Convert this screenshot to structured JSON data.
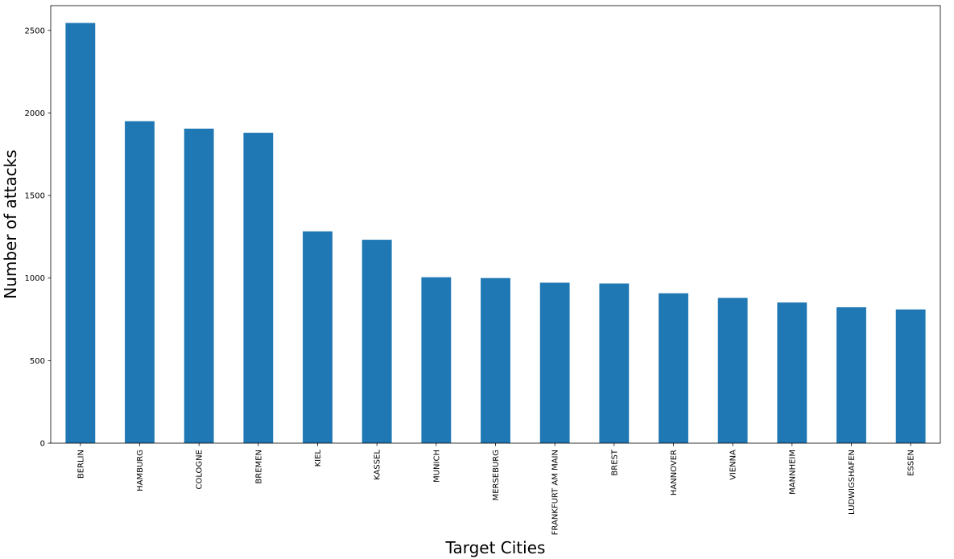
{
  "chart_data": {
    "type": "bar",
    "title": "",
    "xlabel": "Target Cities",
    "ylabel": "Number of attacks",
    "categories": [
      "BERLIN",
      "HAMBURG",
      "COLOGNE",
      "BREMEN",
      "KIEL",
      "KASSEL",
      "MUNICH",
      "MERSEBURG",
      "FRANKFURT AM MAIN",
      "BREST",
      "HANNOVER",
      "VIENNA",
      "MANNHEIM",
      "LUDWIGSHAFEN",
      "ESSEN"
    ],
    "values": [
      2545,
      1950,
      1905,
      1880,
      1283,
      1232,
      1005,
      1000,
      972,
      967,
      908,
      880,
      852,
      823,
      810
    ],
    "ylim": [
      0,
      2650
    ],
    "yticks": [
      0,
      500,
      1000,
      1500,
      2000,
      2500
    ],
    "grid": false,
    "legend": "none",
    "bar_color": "#1f77b4"
  }
}
